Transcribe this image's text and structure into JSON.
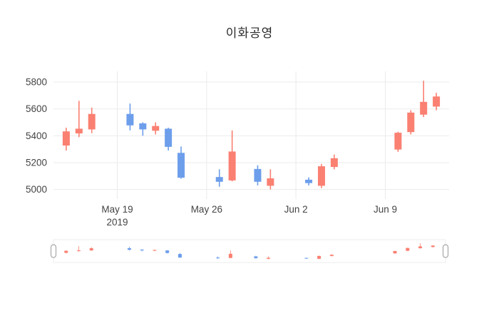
{
  "title": "이화공영",
  "colors": {
    "increasing": "#FA8072",
    "decreasing": "#6D9EEB",
    "grid": "#EBEBEB",
    "axis_text": "#444444",
    "background": "#FFFFFF",
    "handle_stroke": "#A8A8A8",
    "frame_stroke": "#EEEEEE"
  },
  "chart_data": {
    "type": "candlestick",
    "title": "이화공영",
    "xlabel": "",
    "ylabel": "",
    "grid": true,
    "legend": "none",
    "rangeslider": true,
    "ylim": [
      4950,
      5880
    ],
    "yticks": [
      5000,
      5200,
      5400,
      5600,
      5800
    ],
    "xticks": [
      {
        "day": 4,
        "label": "May 19",
        "sublabel": "2019"
      },
      {
        "day": 11,
        "label": "May 26",
        "sublabel": ""
      },
      {
        "day": 18,
        "label": "Jun 2",
        "sublabel": ""
      },
      {
        "day": 25,
        "label": "Jun 9",
        "sublabel": ""
      }
    ],
    "candles": [
      {
        "date": "2019-05-15",
        "day": 0,
        "open": 5330,
        "high": 5460,
        "low": 5290,
        "close": 5430
      },
      {
        "date": "2019-05-16",
        "day": 1,
        "open": 5420,
        "high": 5660,
        "low": 5390,
        "close": 5450
      },
      {
        "date": "2019-05-17",
        "day": 2,
        "open": 5450,
        "high": 5610,
        "low": 5420,
        "close": 5560
      },
      {
        "date": "2019-05-20",
        "day": 5,
        "open": 5560,
        "high": 5640,
        "low": 5440,
        "close": 5480
      },
      {
        "date": "2019-05-21",
        "day": 6,
        "open": 5490,
        "high": 5500,
        "low": 5400,
        "close": 5450
      },
      {
        "date": "2019-05-22",
        "day": 7,
        "open": 5440,
        "high": 5500,
        "low": 5410,
        "close": 5470
      },
      {
        "date": "2019-05-23",
        "day": 8,
        "open": 5450,
        "high": 5460,
        "low": 5290,
        "close": 5320
      },
      {
        "date": "2019-05-24",
        "day": 9,
        "open": 5270,
        "high": 5320,
        "low": 5080,
        "close": 5090
      },
      {
        "date": "2019-05-27",
        "day": 12,
        "open": 5090,
        "high": 5150,
        "low": 5020,
        "close": 5060
      },
      {
        "date": "2019-05-28",
        "day": 13,
        "open": 5070,
        "high": 5440,
        "low": 5060,
        "close": 5280
      },
      {
        "date": "2019-05-30",
        "day": 15,
        "open": 5150,
        "high": 5180,
        "low": 5030,
        "close": 5060
      },
      {
        "date": "2019-05-31",
        "day": 16,
        "open": 5030,
        "high": 5150,
        "low": 5000,
        "close": 5080
      },
      {
        "date": "2019-06-03",
        "day": 19,
        "open": 5070,
        "high": 5090,
        "low": 5030,
        "close": 5050
      },
      {
        "date": "2019-06-04",
        "day": 20,
        "open": 5030,
        "high": 5190,
        "low": 5010,
        "close": 5170
      },
      {
        "date": "2019-06-05",
        "day": 21,
        "open": 5170,
        "high": 5260,
        "low": 5150,
        "close": 5230
      },
      {
        "date": "2019-06-10",
        "day": 26,
        "open": 5300,
        "high": 5430,
        "low": 5280,
        "close": 5420
      },
      {
        "date": "2019-06-11",
        "day": 27,
        "open": 5430,
        "high": 5590,
        "low": 5410,
        "close": 5570
      },
      {
        "date": "2019-06-12",
        "day": 28,
        "open": 5560,
        "high": 5810,
        "low": 5540,
        "close": 5650
      },
      {
        "date": "2019-06-13",
        "day": 29,
        "open": 5620,
        "high": 5720,
        "low": 5590,
        "close": 5690
      }
    ]
  }
}
